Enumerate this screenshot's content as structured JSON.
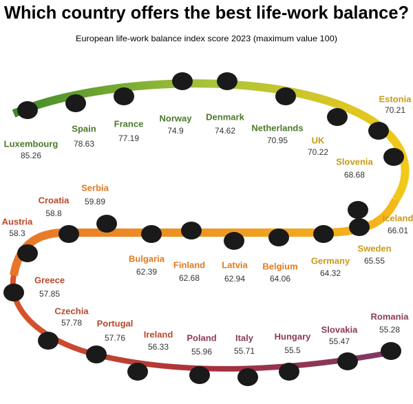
{
  "title": "Which country offers the best life-work balance?",
  "subtitle": "European life-work balance index score 2023 (maximum value 100)",
  "countries": [
    {
      "name": "Luxembourg",
      "value": 85.26
    },
    {
      "name": "Spain",
      "value": 78.63
    },
    {
      "name": "France",
      "value": 77.19
    },
    {
      "name": "Norway",
      "value": 74.9
    },
    {
      "name": "Denmark",
      "value": 74.62
    },
    {
      "name": "Netherlands",
      "value": 70.95
    },
    {
      "name": "UK",
      "value": 70.22
    },
    {
      "name": "Estonia",
      "value": 70.21
    },
    {
      "name": "Slovenia",
      "value": 68.68
    },
    {
      "name": "Iceland",
      "value": 66.01
    },
    {
      "name": "Sweden",
      "value": 65.55
    },
    {
      "name": "Germany",
      "value": 64.32
    },
    {
      "name": "Belgium",
      "value": 64.06
    },
    {
      "name": "Latvia",
      "value": 62.94
    },
    {
      "name": "Finland",
      "value": 62.68
    },
    {
      "name": "Bulgaria",
      "value": 62.39
    },
    {
      "name": "Serbia",
      "value": 59.89
    },
    {
      "name": "Croatia",
      "value": 58.8
    },
    {
      "name": "Austria",
      "value": 58.3
    },
    {
      "name": "Greece",
      "value": 57.85
    },
    {
      "name": "Czechia",
      "value": 57.78
    },
    {
      "name": "Portugal",
      "value": 57.76
    },
    {
      "name": "Ireland",
      "value": 56.33
    },
    {
      "name": "Poland",
      "value": 55.96
    },
    {
      "name": "Italy",
      "value": 55.71
    },
    {
      "name": "Hungary",
      "value": 55.5
    },
    {
      "name": "Slovakia",
      "value": 55.47
    },
    {
      "name": "Romania",
      "value": 55.28
    }
  ]
}
